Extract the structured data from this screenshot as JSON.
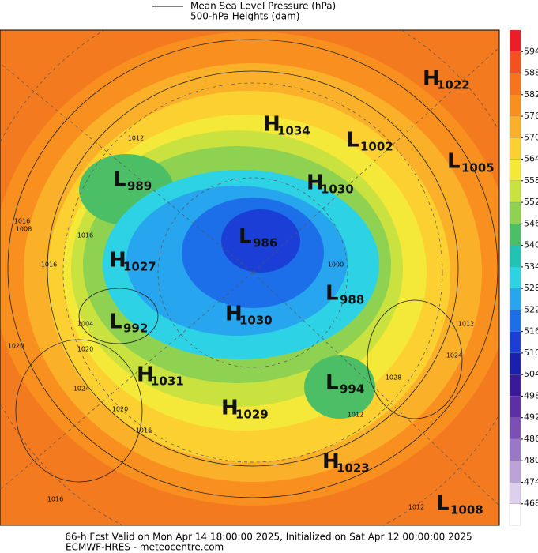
{
  "legend": {
    "line1": "Mean Sea Level Pressure (hPa)",
    "line2": "500-hPa Heights (dam)"
  },
  "colorbar": {
    "ticks": [
      594,
      588,
      582,
      576,
      570,
      564,
      558,
      552,
      546,
      540,
      534,
      528,
      522,
      516,
      510,
      504,
      498,
      492,
      486,
      480,
      474,
      468
    ],
    "colors": [
      "#ee1c25",
      "#f4511e",
      "#f7741c",
      "#f98f1f",
      "#fbb02a",
      "#fcd030",
      "#f4e839",
      "#c9e23f",
      "#8fd251",
      "#4cbf66",
      "#22c3b4",
      "#2ed2e5",
      "#27a6ef",
      "#1c6ee9",
      "#1b3fd6",
      "#1a1fae",
      "#3b1a9a",
      "#5e2ea6",
      "#7b4fb6",
      "#9a78c7",
      "#bba3d8",
      "#ddd0ec",
      "#ffffff"
    ]
  },
  "centers": [
    {
      "letter": "H",
      "value": "1022"
    },
    {
      "letter": "H",
      "value": "1034"
    },
    {
      "letter": "L",
      "value": "1002"
    },
    {
      "letter": "L",
      "value": "1005"
    },
    {
      "letter": "H",
      "value": "1030"
    },
    {
      "letter": "L",
      "value": "989"
    },
    {
      "letter": "L",
      "value": "986"
    },
    {
      "letter": "H",
      "value": "1027"
    },
    {
      "letter": "L",
      "value": "988"
    },
    {
      "letter": "L",
      "value": "992"
    },
    {
      "letter": "H",
      "value": "1030"
    },
    {
      "letter": "H",
      "value": "1031"
    },
    {
      "letter": "L",
      "value": "994"
    },
    {
      "letter": "H",
      "value": "1029"
    },
    {
      "letter": "H",
      "value": "1023"
    },
    {
      "letter": "L",
      "value": "1008"
    }
  ],
  "isobar_labels": [
    "1012",
    "1016",
    "1008",
    "1016",
    "1016",
    "1020",
    "1004",
    "1020",
    "1024",
    "1028",
    "1012",
    "1016",
    "1020",
    "1024",
    "1016",
    "1012",
    "1000",
    "1012"
  ],
  "footer": {
    "line1": "66-h Fcst Valid on Mon Apr 14 18:00:00 2025, Initialized on Sat Apr 12 00:00:00 2025",
    "line2": "ECMWF-HRES  -  meteocentre.com"
  }
}
